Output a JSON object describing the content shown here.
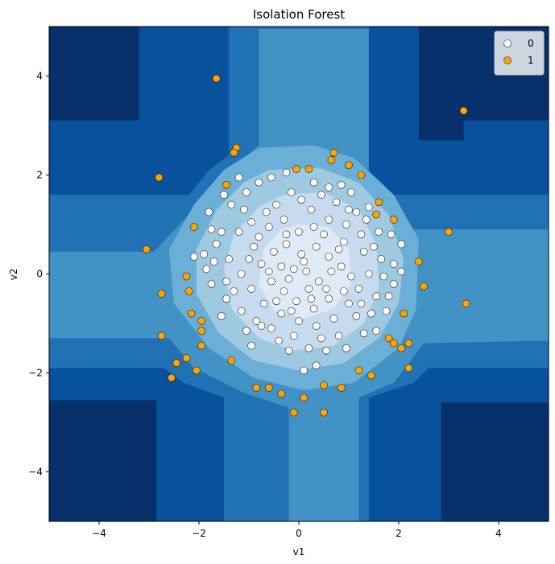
{
  "chart_data": {
    "type": "scatter",
    "title": "Isolation Forest",
    "xlabel": "v1",
    "ylabel": "v2",
    "xlim": [
      -5,
      5
    ],
    "ylim": [
      -5,
      5
    ],
    "xticks": [
      -4,
      -2,
      0,
      2,
      4
    ],
    "yticks": [
      -4,
      -2,
      0,
      2,
      4
    ],
    "grid": false,
    "legend_position": "top-right",
    "background": "filled contour of anomaly score (Blues colormap), darkest in corners, lightest at center",
    "contour_colors": [
      "#08306b",
      "#08519c",
      "#2171b5",
      "#4292c6",
      "#6baed6",
      "#9ecae1",
      "#c6dbef",
      "#deebf7"
    ],
    "series": [
      {
        "name": "0",
        "color": "#ffffff",
        "points": [
          [
            -1.8,
            1.25
          ],
          [
            -1.75,
            0.9
          ],
          [
            -1.5,
            1.6
          ],
          [
            -1.35,
            1.4
          ],
          [
            -1.2,
            1.95
          ],
          [
            -1.05,
            1.65
          ],
          [
            -0.8,
            1.85
          ],
          [
            -0.55,
            1.95
          ],
          [
            -0.25,
            2.05
          ],
          [
            0.05,
            1.5
          ],
          [
            0.3,
            1.85
          ],
          [
            0.6,
            1.75
          ],
          [
            0.85,
            1.8
          ],
          [
            1.05,
            1.65
          ],
          [
            1.15,
            1.25
          ],
          [
            1.4,
            1.35
          ],
          [
            1.6,
            0.85
          ],
          [
            1.85,
            0.8
          ],
          [
            2.05,
            0.6
          ],
          [
            1.9,
            0.2
          ],
          [
            2.05,
            0.05
          ],
          [
            1.9,
            -0.2
          ],
          [
            1.8,
            -0.45
          ],
          [
            1.75,
            -0.75
          ],
          [
            1.45,
            -0.8
          ],
          [
            1.55,
            -1.15
          ],
          [
            1.3,
            -1.2
          ],
          [
            0.95,
            -1.5
          ],
          [
            0.55,
            -1.55
          ],
          [
            0.2,
            -1.5
          ],
          [
            -0.1,
            -1.25
          ],
          [
            -0.4,
            -1.35
          ],
          [
            -0.75,
            -1.05
          ],
          [
            -0.95,
            -1.45
          ],
          [
            -1.15,
            -0.75
          ],
          [
            -1.45,
            -0.5
          ],
          [
            -1.55,
            -0.85
          ],
          [
            -1.75,
            -0.2
          ],
          [
            -1.85,
            0.1
          ],
          [
            -2.1,
            0.35
          ],
          [
            -1.9,
            0.4
          ],
          [
            -1.65,
            0.6
          ],
          [
            -1.4,
            0.3
          ],
          [
            -1.2,
            0.85
          ],
          [
            -0.9,
            0.55
          ],
          [
            -0.6,
            0.95
          ],
          [
            -0.3,
            1.1
          ],
          [
            0.0,
            0.85
          ],
          [
            0.3,
            0.95
          ],
          [
            0.6,
            1.1
          ],
          [
            0.95,
            1.0
          ],
          [
            1.25,
            0.8
          ],
          [
            1.5,
            0.55
          ],
          [
            1.65,
            0.3
          ],
          [
            1.4,
            0.0
          ],
          [
            1.2,
            -0.3
          ],
          [
            1.0,
            -0.6
          ],
          [
            0.7,
            -0.9
          ],
          [
            0.35,
            -1.05
          ],
          [
            0.0,
            -0.95
          ],
          [
            -0.35,
            -0.8
          ],
          [
            -0.7,
            -0.6
          ],
          [
            -0.95,
            -0.3
          ],
          [
            -1.15,
            0.0
          ],
          [
            -1.0,
            0.3
          ],
          [
            -0.75,
            0.2
          ],
          [
            -0.5,
            0.45
          ],
          [
            -0.25,
            0.6
          ],
          [
            0.05,
            0.4
          ],
          [
            0.35,
            0.55
          ],
          [
            0.6,
            0.35
          ],
          [
            0.85,
            0.15
          ],
          [
            1.05,
            -0.05
          ],
          [
            0.9,
            -0.35
          ],
          [
            0.6,
            -0.5
          ],
          [
            0.3,
            -0.7
          ],
          [
            -0.05,
            -0.55
          ],
          [
            -0.3,
            -0.35
          ],
          [
            -0.55,
            -0.15
          ],
          [
            -0.35,
            0.15
          ],
          [
            -0.1,
            0.1
          ],
          [
            0.15,
            0.05
          ],
          [
            0.4,
            -0.15
          ],
          [
            0.2,
            -0.3
          ],
          [
            -0.2,
            -0.1
          ],
          [
            0.1,
            0.25
          ],
          [
            -0.45,
            -0.55
          ],
          [
            0.5,
            0.8
          ],
          [
            -0.65,
            1.25
          ],
          [
            0.25,
            1.3
          ],
          [
            0.75,
            1.45
          ],
          [
            -0.95,
            1.05
          ],
          [
            1.3,
            0.45
          ],
          [
            1.15,
            -0.85
          ],
          [
            -1.3,
            -0.35
          ],
          [
            -0.85,
            -0.95
          ],
          [
            0.45,
            -1.3
          ],
          [
            -0.2,
            -1.55
          ],
          [
            0.8,
            -1.25
          ],
          [
            -1.55,
            0.85
          ],
          [
            1.7,
            -0.05
          ],
          [
            -0.55,
            -1.1
          ],
          [
            0.65,
            0.05
          ],
          [
            -0.8,
            0.75
          ],
          [
            0.9,
            0.65
          ],
          [
            -0.15,
            1.65
          ],
          [
            0.45,
            1.6
          ],
          [
            -1.1,
            1.3
          ],
          [
            1.35,
            1.1
          ],
          [
            -1.45,
            -0.15
          ],
          [
            1.55,
            -0.45
          ],
          [
            0.1,
            -1.95
          ],
          [
            -0.45,
            1.4
          ],
          [
            1.0,
            1.3
          ],
          [
            -1.7,
            0.25
          ],
          [
            0.35,
            -1.85
          ],
          [
            -1.05,
            -1.15
          ],
          [
            1.25,
            -0.6
          ],
          [
            -0.25,
            0.8
          ],
          [
            0.55,
            -0.3
          ],
          [
            -0.6,
            0.05
          ],
          [
            0.25,
            -0.5
          ],
          [
            -0.15,
            -0.75
          ],
          [
            0.8,
            0.5
          ]
        ]
      },
      {
        "name": "1",
        "color": "#ffa500",
        "points": [
          [
            -1.65,
            3.95
          ],
          [
            3.3,
            3.3
          ],
          [
            -1.25,
            2.55
          ],
          [
            -1.3,
            2.45
          ],
          [
            0.7,
            2.45
          ],
          [
            0.65,
            2.3
          ],
          [
            -2.8,
            1.95
          ],
          [
            -0.05,
            2.12
          ],
          [
            0.2,
            2.12
          ],
          [
            1.0,
            2.2
          ],
          [
            1.25,
            2.0
          ],
          [
            -1.45,
            1.8
          ],
          [
            1.6,
            1.45
          ],
          [
            1.55,
            1.2
          ],
          [
            1.9,
            1.1
          ],
          [
            -2.1,
            0.95
          ],
          [
            3.0,
            0.85
          ],
          [
            -3.05,
            0.5
          ],
          [
            2.4,
            0.25
          ],
          [
            2.5,
            -0.25
          ],
          [
            -2.75,
            -0.4
          ],
          [
            -2.25,
            -0.05
          ],
          [
            -2.2,
            -0.35
          ],
          [
            3.35,
            -0.6
          ],
          [
            2.1,
            -0.8
          ],
          [
            -2.15,
            -0.8
          ],
          [
            -1.95,
            -0.95
          ],
          [
            -1.95,
            -1.15
          ],
          [
            -2.75,
            -1.25
          ],
          [
            1.8,
            -1.3
          ],
          [
            1.9,
            -1.4
          ],
          [
            2.2,
            -1.4
          ],
          [
            2.05,
            -1.5
          ],
          [
            -1.95,
            -1.45
          ],
          [
            -2.25,
            -1.7
          ],
          [
            -2.45,
            -1.8
          ],
          [
            -1.35,
            -1.75
          ],
          [
            1.2,
            -1.95
          ],
          [
            -2.05,
            -1.95
          ],
          [
            2.2,
            -1.9
          ],
          [
            1.45,
            -2.05
          ],
          [
            -2.55,
            -2.1
          ],
          [
            0.5,
            -2.25
          ],
          [
            -0.85,
            -2.3
          ],
          [
            -0.6,
            -2.3
          ],
          [
            0.85,
            -2.3
          ],
          [
            -0.35,
            -2.42
          ],
          [
            0.1,
            -2.5
          ],
          [
            -0.1,
            -2.8
          ],
          [
            0.5,
            -2.8
          ]
        ]
      }
    ],
    "legend": [
      {
        "label": "0",
        "color": "#ffffff"
      },
      {
        "label": "1",
        "color": "#ffa500"
      }
    ]
  }
}
